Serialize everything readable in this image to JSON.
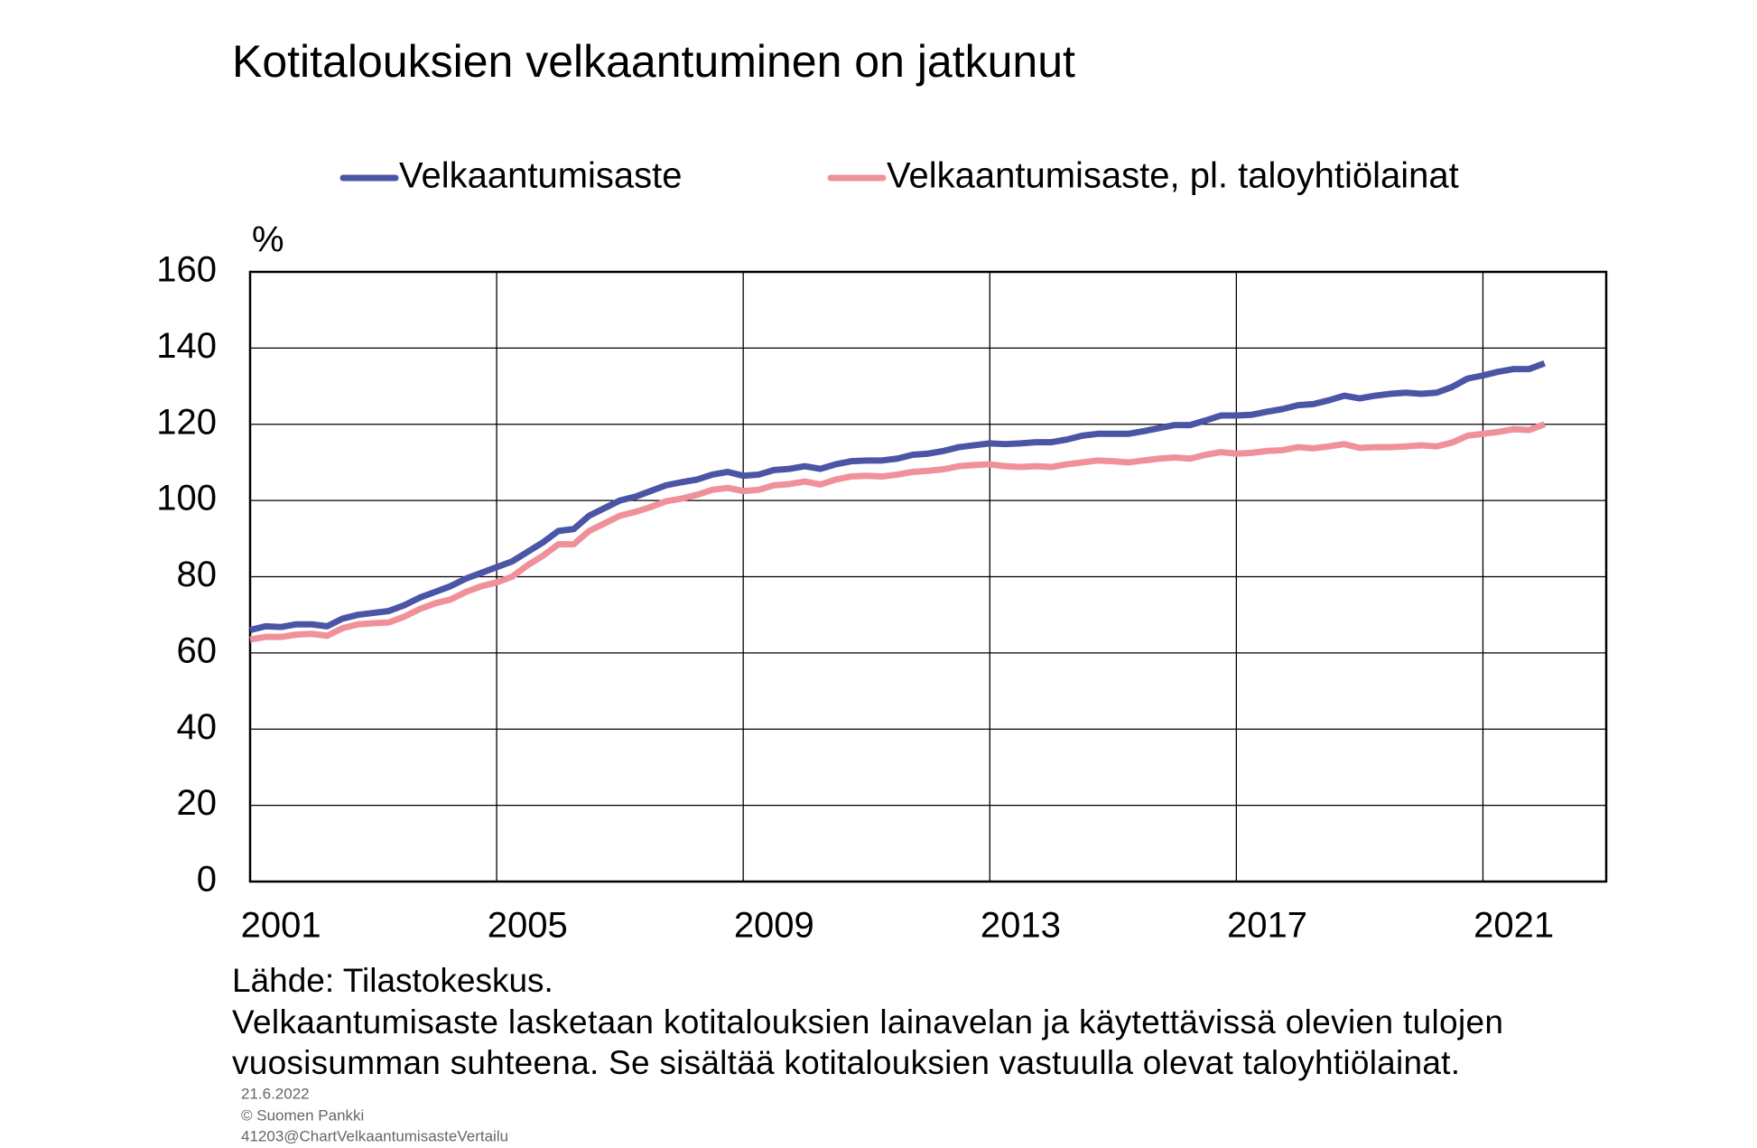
{
  "chart_data": {
    "type": "line",
    "title": "Kotitalouksien velkaantuminen on jatkunut",
    "y_unit": "%",
    "xlim": [
      2001,
      2023
    ],
    "xticks": [
      2001,
      2005,
      2009,
      2013,
      2017,
      2021
    ],
    "ylim": [
      0,
      160
    ],
    "yticks": [
      0,
      20,
      40,
      60,
      80,
      100,
      120,
      140,
      160
    ],
    "grid": true,
    "legend": "top",
    "x": [
      2001.0,
      2001.25,
      2001.5,
      2001.75,
      2002.0,
      2002.25,
      2002.5,
      2002.75,
      2003.0,
      2003.25,
      2003.5,
      2003.75,
      2004.0,
      2004.25,
      2004.5,
      2004.75,
      2005.0,
      2005.25,
      2005.5,
      2005.75,
      2006.0,
      2006.25,
      2006.5,
      2006.75,
      2007.0,
      2007.25,
      2007.5,
      2007.75,
      2008.0,
      2008.25,
      2008.5,
      2008.75,
      2009.0,
      2009.25,
      2009.5,
      2009.75,
      2010.0,
      2010.25,
      2010.5,
      2010.75,
      2011.0,
      2011.25,
      2011.5,
      2011.75,
      2012.0,
      2012.25,
      2012.5,
      2012.75,
      2013.0,
      2013.25,
      2013.5,
      2013.75,
      2014.0,
      2014.25,
      2014.5,
      2014.75,
      2015.0,
      2015.25,
      2015.5,
      2015.75,
      2016.0,
      2016.25,
      2016.5,
      2016.75,
      2017.0,
      2017.25,
      2017.5,
      2017.75,
      2018.0,
      2018.25,
      2018.5,
      2018.75,
      2019.0,
      2019.25,
      2019.5,
      2019.75,
      2020.0,
      2020.25,
      2020.5,
      2020.75,
      2021.0,
      2021.25,
      2021.5,
      2021.75,
      2022.0
    ],
    "series": [
      {
        "name": "Velkaantumisaste",
        "color": "#4b55a5",
        "values": [
          66,
          67,
          66.8,
          67.5,
          67.5,
          67,
          69,
          70,
          70.5,
          71,
          72.5,
          74.5,
          76,
          77.5,
          79.5,
          81,
          82.5,
          84,
          86.5,
          89,
          92,
          92.5,
          96,
          98,
          100,
          101,
          102.5,
          104,
          104.8,
          105.5,
          106.8,
          107.5,
          106.5,
          106.8,
          108,
          108.3,
          109,
          108.3,
          109.5,
          110.3,
          110.5,
          110.5,
          111,
          112,
          112.3,
          113,
          114,
          114.5,
          115,
          114.8,
          115,
          115.3,
          115.3,
          116,
          117,
          117.5,
          117.5,
          117.5,
          118.2,
          119,
          119.8,
          119.8,
          121,
          122.3,
          122.3,
          122.5,
          123.3,
          124,
          125,
          125.3,
          126.3,
          127.5,
          126.8,
          127.5,
          128,
          128.3,
          128,
          128.3,
          129.8,
          132,
          132.8,
          133.8,
          134.5,
          134.5,
          136
        ]
      },
      {
        "name": "Velkaantumisaste, pl. taloyhtiölainat",
        "color": "#f0919a",
        "values": [
          63.5,
          64.2,
          64.2,
          64.8,
          65,
          64.5,
          66.5,
          67.5,
          67.8,
          68,
          69.5,
          71.5,
          73,
          74,
          76,
          77.5,
          78.5,
          80,
          83,
          85.5,
          88.5,
          88.5,
          92,
          94,
          96,
          97,
          98.3,
          99.8,
          100.5,
          101.5,
          102.8,
          103.3,
          102.5,
          102.8,
          104,
          104.3,
          105,
          104.2,
          105.5,
          106.3,
          106.5,
          106.3,
          106.8,
          107.5,
          107.8,
          108.2,
          109,
          109.3,
          109.5,
          109,
          108.8,
          109,
          108.8,
          109.5,
          110,
          110.5,
          110.3,
          110,
          110.5,
          111,
          111.3,
          111,
          112,
          112.7,
          112.3,
          112.5,
          113,
          113.2,
          114,
          113.7,
          114.2,
          114.8,
          113.8,
          114,
          114,
          114.2,
          114.5,
          114.2,
          115.2,
          117,
          117.5,
          118,
          118.7,
          118.5,
          120
        ]
      }
    ],
    "source": "Lähde: Tilastokeskus.",
    "notes": [
      "Velkaantumisaste lasketaan kotitalouksien lainavelan ja käytettävissä olevien tulojen",
      "vuosisumman suhteena. Se sisältää kotitalouksien vastuulla olevat taloyhtiölainat."
    ],
    "footer": [
      "21.6.2022",
      "© Suomen Pankki",
      "41203@ChartVelkaantumisasteVertailu"
    ]
  }
}
